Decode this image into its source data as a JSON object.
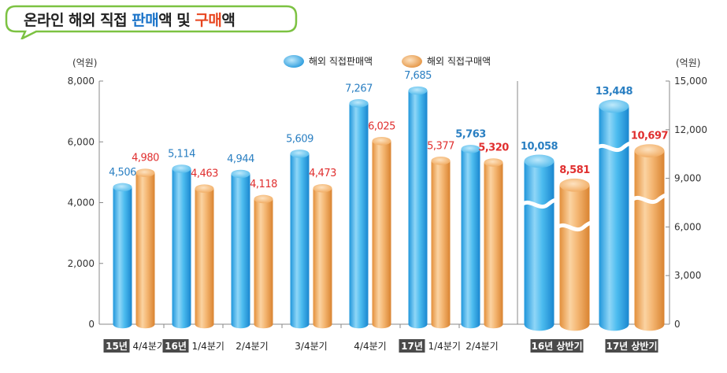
{
  "title": {
    "prefix": "온라인 해외 직접 ",
    "sale_word": "판매",
    "mid": "액 및 ",
    "buy_word": "구매",
    "suffix": "액"
  },
  "colors": {
    "sale": "#3aaee8",
    "buy": "#f2a95c",
    "sale_label": "#2a7fc2",
    "buy_label": "#e02f2f",
    "tag_bg": "#4a4a4a"
  },
  "chart_data": {
    "type": "bar",
    "left_unit": "(억원)",
    "right_unit": "(억원)",
    "left_axis": {
      "ylim": [
        0,
        8000
      ],
      "ticks": [
        "0",
        "2,000",
        "4,000",
        "6,000",
        "8,000"
      ]
    },
    "right_axis": {
      "ylim": [
        0,
        15000
      ],
      "ticks": [
        "0",
        "3,000",
        "6,000",
        "9,000",
        "12,000",
        "15,000"
      ]
    },
    "legend": [
      "해외 직접판매액",
      "해외 직접구매액"
    ],
    "groups": [
      {
        "tag": "15년",
        "label": "4/4분기",
        "axis": "left",
        "sale": 4506,
        "sale_label": "4,506",
        "buy": 4980,
        "buy_label": "4,980"
      },
      {
        "tag": "16년",
        "label": "1/4분기",
        "axis": "left",
        "sale": 5114,
        "sale_label": "5,114",
        "buy": 4463,
        "buy_label": "4,463"
      },
      {
        "tag": "",
        "label": "2/4분기",
        "axis": "left",
        "sale": 4944,
        "sale_label": "4,944",
        "buy": 4118,
        "buy_label": "4,118"
      },
      {
        "tag": "",
        "label": "3/4분기",
        "axis": "left",
        "sale": 5609,
        "sale_label": "5,609",
        "buy": 4473,
        "buy_label": "4,473"
      },
      {
        "tag": "",
        "label": "4/4분기",
        "axis": "left",
        "sale": 7267,
        "sale_label": "7,267",
        "buy": 6025,
        "buy_label": "6,025"
      },
      {
        "tag": "17년",
        "label": "1/4분기",
        "axis": "left",
        "sale": 7685,
        "sale_label": "7,685",
        "buy": 5377,
        "buy_label": "5,377"
      },
      {
        "tag": "",
        "label": "2/4분기",
        "axis": "left",
        "bold": true,
        "sale": 5763,
        "sale_label": "5,763",
        "buy": 5320,
        "buy_label": "5,320"
      },
      {
        "tag": "16년 상반기",
        "label": "",
        "axis": "right",
        "bold": true,
        "sale": 10058,
        "sale_label": "10,058",
        "buy": 8581,
        "buy_label": "8,581"
      },
      {
        "tag": "17년 상반기",
        "label": "",
        "axis": "right",
        "bold": true,
        "sale": 13448,
        "sale_label": "13,448",
        "buy": 10697,
        "buy_label": "10,697"
      }
    ]
  }
}
